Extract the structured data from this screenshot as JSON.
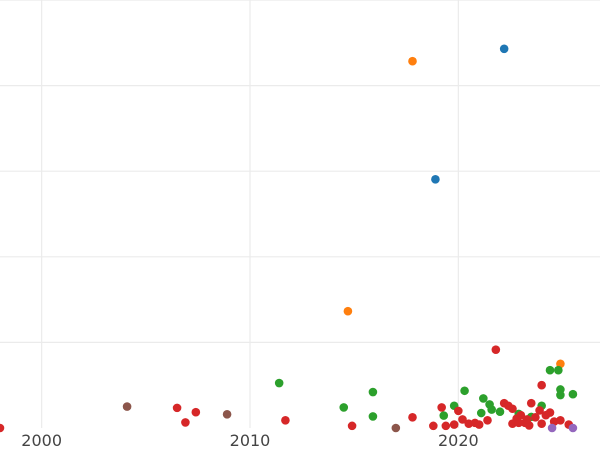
{
  "chart_data": {
    "type": "scatter",
    "title": "",
    "xlabel": "",
    "ylabel": "",
    "xlim": [
      1998,
      2026.8
    ],
    "ylim": [
      0,
      1.0
    ],
    "grid": true,
    "x_ticks": [
      2000,
      2010,
      2020
    ],
    "y_ticks": [
      0.2,
      0.4,
      0.6,
      0.8,
      1.0
    ],
    "colors": {
      "blue": "#1f77b4",
      "orange": "#ff7f0e",
      "green": "#2ca02c",
      "red": "#d62728",
      "purple": "#9467bd",
      "brown": "#8c564b"
    },
    "series": [
      {
        "color": "#1f77b4",
        "points": [
          {
            "x": 2022.2,
            "y": 0.886
          },
          {
            "x": 2018.9,
            "y": 0.581
          }
        ]
      },
      {
        "color": "#ff7f0e",
        "points": [
          {
            "x": 2017.8,
            "y": 0.857
          },
          {
            "x": 2014.7,
            "y": 0.273
          },
          {
            "x": 2024.9,
            "y": 0.15
          }
        ]
      },
      {
        "color": "#2ca02c",
        "points": [
          {
            "x": 2011.4,
            "y": 0.105
          },
          {
            "x": 2014.5,
            "y": 0.048
          },
          {
            "x": 2015.9,
            "y": 0.084
          },
          {
            "x": 2015.9,
            "y": 0.027
          },
          {
            "x": 2019.3,
            "y": 0.029
          },
          {
            "x": 2019.8,
            "y": 0.052
          },
          {
            "x": 2020.3,
            "y": 0.087
          },
          {
            "x": 2021.1,
            "y": 0.035
          },
          {
            "x": 2021.2,
            "y": 0.069
          },
          {
            "x": 2021.5,
            "y": 0.055
          },
          {
            "x": 2021.6,
            "y": 0.043
          },
          {
            "x": 2022.0,
            "y": 0.038
          },
          {
            "x": 2022.9,
            "y": 0.033
          },
          {
            "x": 2023.5,
            "y": 0.026
          },
          {
            "x": 2024.0,
            "y": 0.052
          },
          {
            "x": 2024.4,
            "y": 0.135
          },
          {
            "x": 2024.8,
            "y": 0.135
          },
          {
            "x": 2024.9,
            "y": 0.09
          },
          {
            "x": 2024.9,
            "y": 0.077
          },
          {
            "x": 2025.5,
            "y": 0.079
          }
        ]
      },
      {
        "color": "#d62728",
        "points": [
          {
            "x": 1998.0,
            "y": 0.0
          },
          {
            "x": 2006.5,
            "y": 0.047
          },
          {
            "x": 2006.9,
            "y": 0.013
          },
          {
            "x": 2007.4,
            "y": 0.037
          },
          {
            "x": 2011.7,
            "y": 0.018
          },
          {
            "x": 2014.9,
            "y": 0.005
          },
          {
            "x": 2017.8,
            "y": 0.025
          },
          {
            "x": 2018.8,
            "y": 0.005
          },
          {
            "x": 2019.2,
            "y": 0.048
          },
          {
            "x": 2019.4,
            "y": 0.005
          },
          {
            "x": 2019.8,
            "y": 0.008
          },
          {
            "x": 2020.0,
            "y": 0.04
          },
          {
            "x": 2020.2,
            "y": 0.02
          },
          {
            "x": 2020.5,
            "y": 0.01
          },
          {
            "x": 2020.8,
            "y": 0.012
          },
          {
            "x": 2021.0,
            "y": 0.008
          },
          {
            "x": 2021.4,
            "y": 0.018
          },
          {
            "x": 2021.8,
            "y": 0.183
          },
          {
            "x": 2022.2,
            "y": 0.058
          },
          {
            "x": 2022.4,
            "y": 0.052
          },
          {
            "x": 2022.6,
            "y": 0.045
          },
          {
            "x": 2022.6,
            "y": 0.01
          },
          {
            "x": 2022.8,
            "y": 0.022
          },
          {
            "x": 2023.0,
            "y": 0.03
          },
          {
            "x": 2023.2,
            "y": 0.012
          },
          {
            "x": 2023.4,
            "y": 0.006
          },
          {
            "x": 2023.5,
            "y": 0.058
          },
          {
            "x": 2023.7,
            "y": 0.025
          },
          {
            "x": 2023.9,
            "y": 0.041
          },
          {
            "x": 2024.0,
            "y": 0.01
          },
          {
            "x": 2024.2,
            "y": 0.03
          },
          {
            "x": 2024.4,
            "y": 0.036
          },
          {
            "x": 2024.6,
            "y": 0.015
          },
          {
            "x": 2024.9,
            "y": 0.018
          },
          {
            "x": 2025.3,
            "y": 0.008
          },
          {
            "x": 2023.3,
            "y": 0.02
          },
          {
            "x": 2022.9,
            "y": 0.012
          },
          {
            "x": 2024.0,
            "y": 0.1
          }
        ]
      },
      {
        "color": "#9467bd",
        "points": [
          {
            "x": 2024.5,
            "y": 0.0
          },
          {
            "x": 2025.5,
            "y": 0.0
          }
        ]
      },
      {
        "color": "#8c564b",
        "points": [
          {
            "x": 2004.1,
            "y": 0.05
          },
          {
            "x": 2008.9,
            "y": 0.032
          },
          {
            "x": 2017.0,
            "y": 0.0
          }
        ]
      }
    ]
  }
}
